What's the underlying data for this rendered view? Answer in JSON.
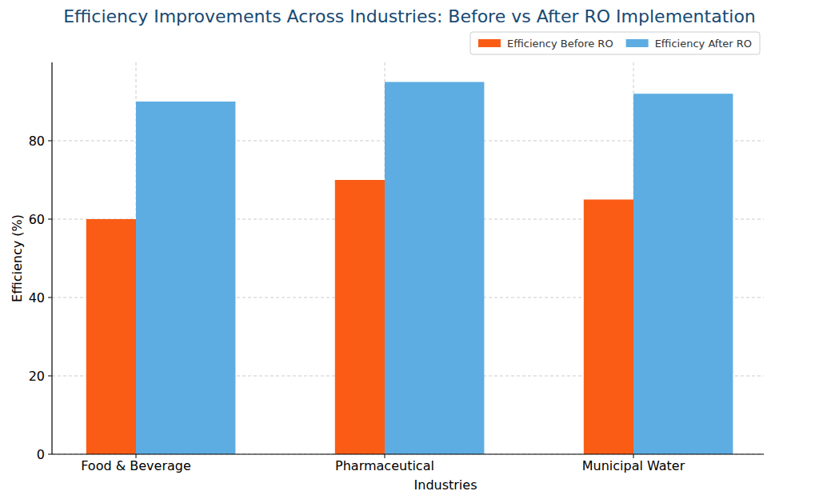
{
  "chart_data": {
    "type": "bar",
    "title": "Efficiency Improvements Across Industries: Before vs After RO Implementation",
    "x_label": "Industries",
    "y_label": "Efficiency (%)",
    "categories": [
      "Food & Beverage",
      "Pharmaceutical",
      "Municipal Water"
    ],
    "series": [
      {
        "name": "Efficiency Before RO",
        "color": "#fa5c16",
        "values": [
          60,
          70,
          65
        ]
      },
      {
        "name": "Efficiency After RO",
        "color": "#5dade2",
        "values": [
          90,
          95,
          92
        ]
      }
    ],
    "ylim": [
      0,
      100
    ],
    "yticks": [
      0,
      20,
      40,
      60,
      80
    ],
    "grid": true,
    "legend": "upper right"
  }
}
